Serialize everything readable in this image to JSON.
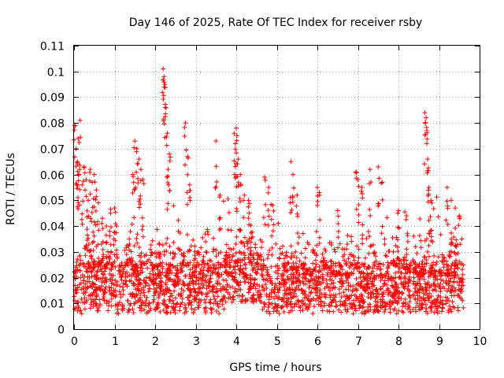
{
  "chart_data": {
    "type": "scatter",
    "title": "Day 146 of 2025, Rate Of TEC Index for receiver rsby",
    "xlabel": "GPS time / hours",
    "ylabel": "ROTI / TECUs",
    "xlim": [
      0,
      10
    ],
    "ylim": [
      0,
      0.11
    ],
    "xticks": [
      "0",
      "1",
      "2",
      "3",
      "4",
      "5",
      "6",
      "7",
      "8",
      "9",
      "10"
    ],
    "yticks": [
      "0",
      "0.01",
      "0.02",
      "0.03",
      "0.04",
      "0.05",
      "0.06",
      "0.07",
      "0.08",
      "0.09",
      "0.1",
      "0.11"
    ],
    "grid": true,
    "marker": "+",
    "color": "#ff0000",
    "series": [
      {
        "name": "ROTI",
        "description": "Dense scatter of ROTI values from 0 to ~9.6 h, bulk 0.005-0.03 TECU with spikes up to ~0.1",
        "points": [
          [
            0.02,
            0.079
          ],
          [
            0.05,
            0.07
          ],
          [
            0.08,
            0.065
          ],
          [
            0.1,
            0.074
          ],
          [
            0.15,
            0.081
          ],
          [
            0.12,
            0.06
          ],
          [
            0.2,
            0.056
          ],
          [
            0.25,
            0.063
          ],
          [
            0.3,
            0.058
          ],
          [
            0.35,
            0.05
          ],
          [
            0.4,
            0.062
          ],
          [
            0.45,
            0.057
          ],
          [
            0.5,
            0.06
          ],
          [
            0.55,
            0.054
          ],
          [
            0.6,
            0.049
          ],
          [
            0.7,
            0.043
          ],
          [
            0.8,
            0.04
          ],
          [
            0.9,
            0.045
          ],
          [
            1.0,
            0.047
          ],
          [
            1.05,
            0.04
          ],
          [
            1.45,
            0.06
          ],
          [
            1.5,
            0.073
          ],
          [
            1.55,
            0.07
          ],
          [
            1.6,
            0.066
          ],
          [
            1.65,
            0.062
          ],
          [
            1.7,
            0.058
          ],
          [
            2.2,
            0.101
          ],
          [
            2.22,
            0.098
          ],
          [
            2.24,
            0.095
          ],
          [
            2.25,
            0.086
          ],
          [
            2.3,
            0.076
          ],
          [
            2.35,
            0.068
          ],
          [
            2.32,
            0.062
          ],
          [
            2.75,
            0.08
          ],
          [
            2.8,
            0.067
          ],
          [
            2.85,
            0.056
          ],
          [
            3.5,
            0.073
          ],
          [
            3.6,
            0.052
          ],
          [
            3.95,
            0.076
          ],
          [
            4.0,
            0.078
          ],
          [
            3.98,
            0.072
          ],
          [
            4.05,
            0.066
          ],
          [
            4.1,
            0.06
          ],
          [
            4.2,
            0.052
          ],
          [
            4.3,
            0.05
          ],
          [
            4.7,
            0.059
          ],
          [
            4.8,
            0.055
          ],
          [
            4.9,
            0.048
          ],
          [
            5.35,
            0.065
          ],
          [
            5.4,
            0.06
          ],
          [
            5.5,
            0.052
          ],
          [
            6.0,
            0.055
          ],
          [
            6.05,
            0.053
          ],
          [
            6.5,
            0.046
          ],
          [
            6.95,
            0.061
          ],
          [
            7.0,
            0.058
          ],
          [
            7.1,
            0.055
          ],
          [
            7.3,
            0.062
          ],
          [
            7.5,
            0.063
          ],
          [
            7.6,
            0.057
          ],
          [
            8.0,
            0.046
          ],
          [
            8.2,
            0.044
          ],
          [
            8.65,
            0.084
          ],
          [
            8.68,
            0.082
          ],
          [
            8.7,
            0.077
          ],
          [
            8.72,
            0.066
          ],
          [
            8.75,
            0.055
          ],
          [
            8.8,
            0.05
          ],
          [
            9.2,
            0.055
          ],
          [
            9.3,
            0.05
          ],
          [
            9.4,
            0.047
          ],
          [
            9.5,
            0.044
          ]
        ]
      }
    ]
  }
}
